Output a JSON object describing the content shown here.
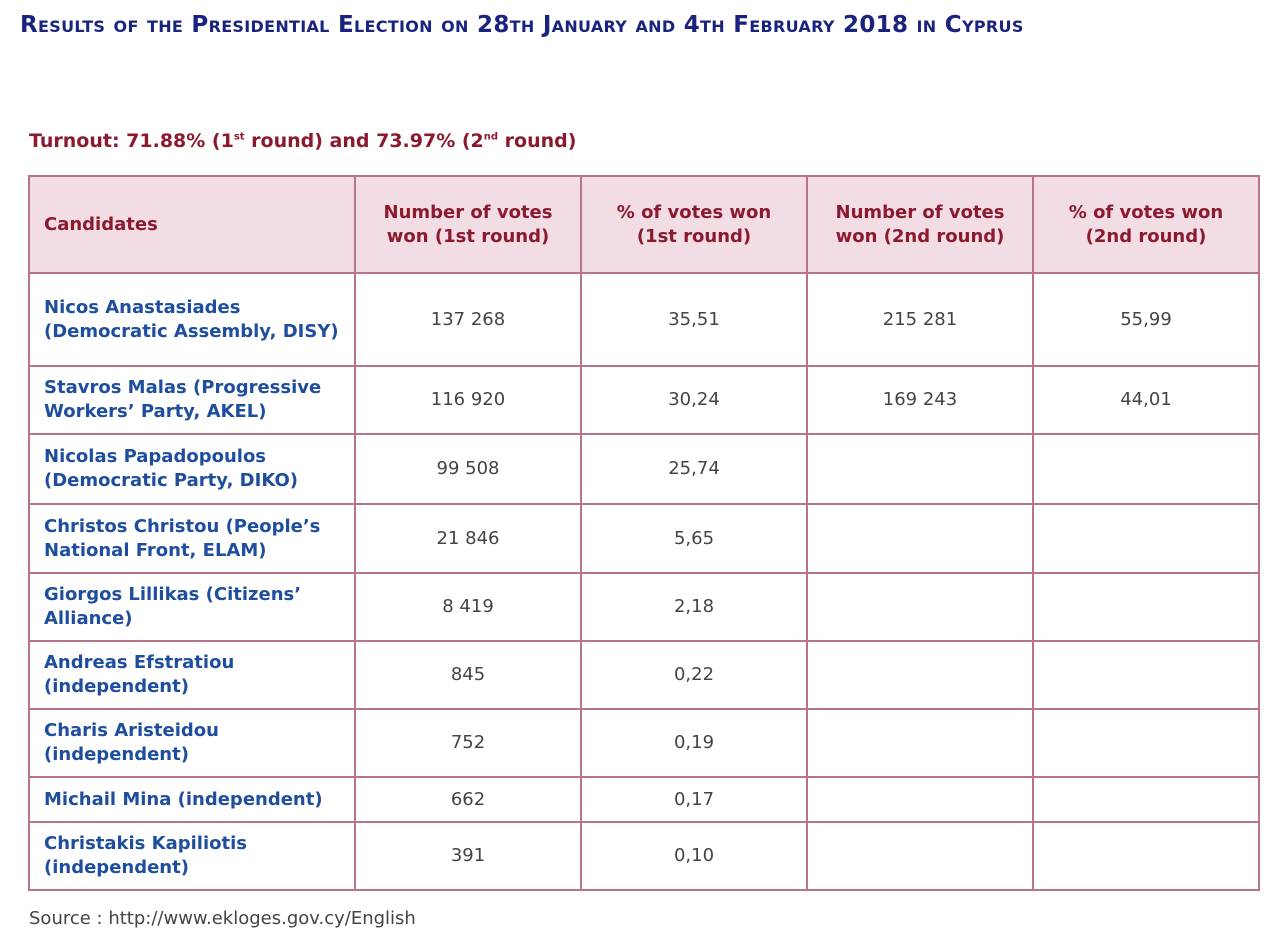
{
  "title": "Results of the Presidential Election on 28th January and 4th February 2018 in Cyprus",
  "turnout": {
    "prefix": "Turnout: 71.88% (1",
    "sup1": "st",
    "middle": " round) and 73.97% (2",
    "sup2": "nd",
    "suffix": " round)"
  },
  "table": {
    "headers": [
      "Candidates",
      "Number of votes won (1st round)",
      "% of votes won (1st round)",
      "Number of votes won (2nd round)",
      "% of votes won (2nd round)"
    ],
    "rows": [
      [
        "Nicos Anastasiades (Democratic Assembly, DISY)",
        "137 268",
        "35,51",
        "215 281",
        "55,99"
      ],
      [
        "Stavros Malas (Progressive Workers’ Party, AKEL)",
        "116 920",
        "30,24",
        "169 243",
        "44,01"
      ],
      [
        "Nicolas Papadopoulos (Democratic Party, DIKO)",
        "99 508",
        "25,74",
        "",
        ""
      ],
      [
        "Christos Christou (People’s National Front, ELAM)",
        "21 846",
        "5,65",
        "",
        ""
      ],
      [
        "Giorgos Lillikas (Citizens’ Alliance)",
        "8 419",
        "2,18",
        "",
        ""
      ],
      [
        "Andreas Efstratiou (independent)",
        "845",
        "0,22",
        "",
        ""
      ],
      [
        "Charis Aristeidou (independent)",
        "752",
        "0,19",
        "",
        ""
      ],
      [
        "Michail Mina (independent)",
        "662",
        "0,17",
        "",
        ""
      ],
      [
        "Christakis Kapiliotis (independent)",
        "391",
        "0,10",
        "",
        ""
      ]
    ]
  },
  "source": "Source : http://www.ekloges.gov.cy/English",
  "colors": {
    "title": "#1a237e",
    "header_text": "#8b1a2e",
    "header_bg": "#f2dde4",
    "border": "#b8758a",
    "candidate_text": "#1f4e9e",
    "value_text": "#444444"
  }
}
